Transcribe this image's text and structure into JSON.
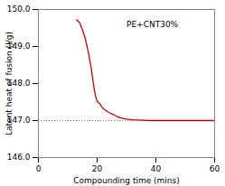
{
  "chart_data": {
    "type": "line",
    "title": "",
    "xlabel": "Compounding time (mins)",
    "ylabel": "Latent heat of fusion (J/g)",
    "x": [
      13,
      14,
      15,
      16,
      17,
      18,
      19,
      19.5,
      20,
      20.5,
      21,
      21.5,
      22,
      23,
      24,
      25,
      26,
      27,
      28,
      30,
      32,
      35,
      38,
      42,
      46,
      50,
      55,
      60
    ],
    "values": [
      149.72,
      149.65,
      149.45,
      149.2,
      148.85,
      148.4,
      147.85,
      147.65,
      147.52,
      147.48,
      147.44,
      147.38,
      147.33,
      147.27,
      147.22,
      147.18,
      147.14,
      147.1,
      147.07,
      147.04,
      147.02,
      147.01,
      147.0,
      147.0,
      147.0,
      147.0,
      147.0,
      147.0
    ],
    "color": "#cc0000",
    "xlim": [
      0,
      60
    ],
    "ylim": [
      146,
      150
    ],
    "xticks": [
      0,
      20,
      40,
      60
    ],
    "yticks": [
      146,
      147,
      148,
      149,
      150
    ],
    "grid": false,
    "reference_line": {
      "y": 147.0,
      "color": "gray",
      "line_style": "dotted"
    },
    "annotations": [
      {
        "text": "PE+CNT30%",
        "x": 30,
        "y": 149.6,
        "color": "#000000"
      }
    ]
  }
}
